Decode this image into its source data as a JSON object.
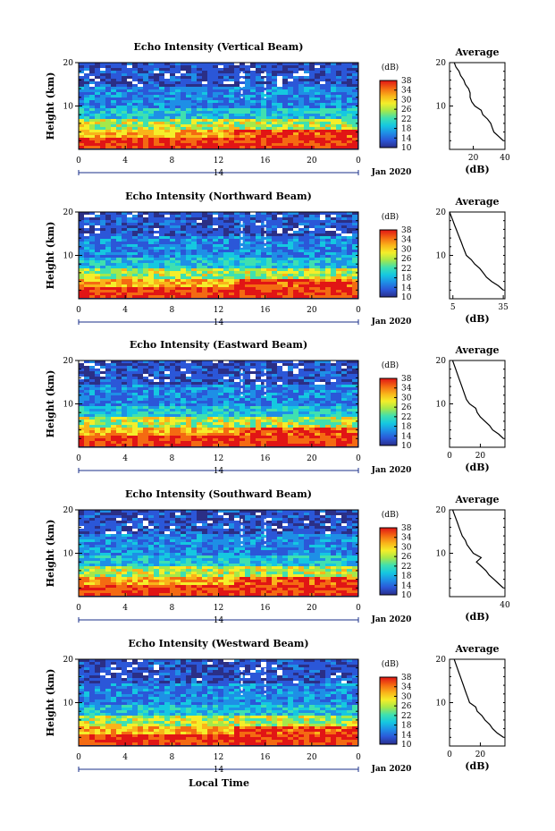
{
  "figure": {
    "xlabel_bottom": "Local Time",
    "date_label": "Jan 2020",
    "cbar_unit": "(dB)",
    "colors": {
      "colormap": [
        "#2a2f8c",
        "#2b57d8",
        "#1e8fe6",
        "#15c8e0",
        "#3fe0b0",
        "#a5e84a",
        "#f4ee2a",
        "#f9b41a",
        "#f46a12",
        "#e11515"
      ],
      "sky": "#2b2f86"
    }
  },
  "chart_data": [
    {
      "type": "heatmap",
      "title": "Echo Intensity (Vertical Beam)",
      "ylabel": "Height (km)",
      "yticks": [
        "20",
        "10"
      ],
      "ylim": [
        0,
        20
      ],
      "xticks": [
        "0",
        "4",
        "8",
        "12",
        "16",
        "20",
        "0"
      ],
      "xlim": [
        0,
        24
      ],
      "day_label": "14",
      "colorbar": {
        "ticks": [
          "38",
          "34",
          "30",
          "26",
          "22",
          "18",
          "14",
          "10"
        ],
        "range": [
          10,
          38
        ]
      },
      "profile": {
        "title": "Average",
        "xlabel": "(dB)",
        "xticks": [
          "20",
          "40"
        ],
        "xlim": [
          5,
          40
        ],
        "yticks": [
          "20",
          "10"
        ],
        "heights": [
          2,
          3,
          4,
          5,
          6,
          7,
          8,
          9,
          10,
          11,
          12,
          13,
          14,
          15,
          16,
          17,
          18,
          19,
          20
        ],
        "values": [
          39,
          36,
          33,
          32,
          31,
          29,
          26,
          25,
          21,
          19,
          18,
          18,
          17,
          15,
          14,
          12,
          11,
          9,
          8
        ]
      }
    },
    {
      "type": "heatmap",
      "title": "Echo Intensity (Northward Beam)",
      "ylabel": "Height (km)",
      "yticks": [
        "20",
        "10"
      ],
      "ylim": [
        0,
        20
      ],
      "xticks": [
        "0",
        "4",
        "8",
        "12",
        "16",
        "20",
        "0"
      ],
      "xlim": [
        0,
        24
      ],
      "day_label": "14",
      "colorbar": {
        "ticks": [
          "38",
          "34",
          "30",
          "26",
          "22",
          "18",
          "14",
          "10"
        ],
        "range": [
          10,
          38
        ]
      },
      "profile": {
        "title": "Average",
        "xlabel": "(dB)",
        "xticks": [
          "5",
          "35"
        ],
        "xlim": [
          3,
          36
        ],
        "yticks": [
          "20",
          "10"
        ],
        "heights": [
          2,
          3,
          4,
          5,
          6,
          7,
          8,
          9,
          10,
          11,
          12,
          13,
          14,
          15,
          16,
          17,
          18,
          19,
          20
        ],
        "values": [
          35,
          32,
          28,
          25,
          23,
          21,
          18,
          16,
          13,
          12,
          11,
          10,
          9,
          8,
          7,
          6,
          5,
          4,
          3
        ]
      }
    },
    {
      "type": "heatmap",
      "title": "Echo Intensity (Eastward Beam)",
      "ylabel": "Height (km)",
      "yticks": [
        "20",
        "10"
      ],
      "ylim": [
        0,
        20
      ],
      "xticks": [
        "0",
        "4",
        "8",
        "12",
        "16",
        "20",
        "0"
      ],
      "xlim": [
        0,
        24
      ],
      "day_label": "14",
      "colorbar": {
        "ticks": [
          "38",
          "34",
          "30",
          "26",
          "22",
          "18",
          "14",
          "10"
        ],
        "range": [
          10,
          38
        ]
      },
      "profile": {
        "title": "Average",
        "xlabel": "(dB)",
        "xticks": [
          "0",
          "20"
        ],
        "xlim": [
          0,
          36
        ],
        "yticks": [
          "20",
          "10"
        ],
        "heights": [
          2,
          3,
          4,
          5,
          6,
          7,
          8,
          9,
          10,
          11,
          12,
          13,
          14,
          15,
          16,
          17,
          18,
          19,
          20
        ],
        "values": [
          35,
          32,
          28,
          26,
          23,
          20,
          18,
          17,
          13,
          11,
          10,
          9,
          8,
          7,
          6,
          5,
          4,
          3,
          2
        ]
      }
    },
    {
      "type": "heatmap",
      "title": "Echo Intensity (Southward Beam)",
      "ylabel": "Height (km)",
      "yticks": [
        "20",
        "10"
      ],
      "ylim": [
        0,
        20
      ],
      "xticks": [
        "0",
        "4",
        "8",
        "12",
        "16",
        "20",
        "0"
      ],
      "xlim": [
        0,
        24
      ],
      "day_label": "14",
      "colorbar": {
        "ticks": [
          "38",
          "34",
          "30",
          "26",
          "22",
          "18",
          "14",
          "10"
        ],
        "range": [
          10,
          38
        ]
      },
      "profile": {
        "title": "Average",
        "xlabel": "(dB)",
        "xticks": [
          "40"
        ],
        "xlim": [
          5,
          40
        ],
        "yticks": [
          "20",
          "10"
        ],
        "heights": [
          2,
          3,
          4,
          5,
          6,
          7,
          8,
          9,
          10,
          11,
          12,
          13,
          14,
          15,
          16,
          17,
          18,
          19,
          20
        ],
        "values": [
          39,
          36,
          33,
          30,
          28,
          25,
          22,
          25,
          20,
          18,
          16,
          15,
          13,
          12,
          11,
          10,
          9,
          8,
          7
        ]
      }
    },
    {
      "type": "heatmap",
      "title": "Echo Intensity (Westward Beam)",
      "ylabel": "Height (km)",
      "yticks": [
        "20",
        "10"
      ],
      "ylim": [
        0,
        20
      ],
      "xticks": [
        "0",
        "4",
        "8",
        "12",
        "16",
        "20",
        "0"
      ],
      "xlim": [
        0,
        24
      ],
      "day_label": "14",
      "colorbar": {
        "ticks": [
          "38",
          "34",
          "30",
          "26",
          "22",
          "18",
          "14",
          "10"
        ],
        "range": [
          10,
          38
        ]
      },
      "profile": {
        "title": "Average",
        "xlabel": "(dB)",
        "xticks": [
          "0",
          "20"
        ],
        "xlim": [
          0,
          36
        ],
        "yticks": [
          "20",
          "10"
        ],
        "heights": [
          2,
          3,
          4,
          5,
          6,
          7,
          8,
          9,
          10,
          11,
          12,
          13,
          14,
          15,
          16,
          17,
          18,
          19,
          20
        ],
        "values": [
          35,
          31,
          28,
          26,
          23,
          21,
          18,
          17,
          13,
          12,
          11,
          10,
          9,
          8,
          7,
          6,
          5,
          4,
          3
        ]
      }
    }
  ]
}
